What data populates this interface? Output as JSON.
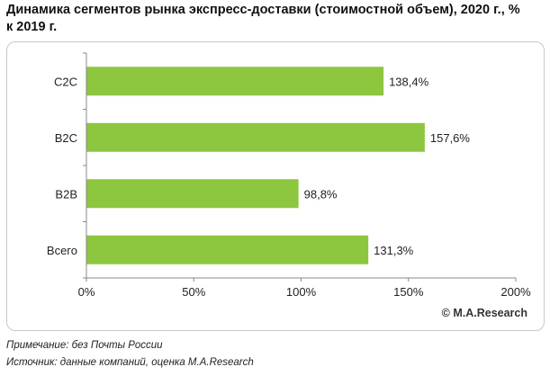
{
  "title_line1": "Динамика сегментов рынка экспресс-доставки (стоимостной объем), 2020 г., %",
  "title_line2": "к 2019 г.",
  "copyright": "© M.A.Research",
  "note": "Примечание: без Почты России",
  "source": "Источник:  данные компаний, оценка M.A.Research",
  "colors": {
    "bar": "#8dc63f",
    "axis": "#888888"
  },
  "chart_data": {
    "type": "bar",
    "orientation": "horizontal",
    "categories": [
      "C2C",
      "B2C",
      "B2B",
      "Всего"
    ],
    "values": [
      138.4,
      157.6,
      98.8,
      131.3
    ],
    "value_labels": [
      "138,4%",
      "157,6%",
      "98,8%",
      "131,3%"
    ],
    "xlim": [
      0,
      200
    ],
    "x_ticks": [
      0,
      50,
      100,
      150,
      200
    ],
    "x_tick_labels": [
      "0%",
      "50%",
      "100%",
      "150%",
      "200%"
    ],
    "grid": false
  }
}
